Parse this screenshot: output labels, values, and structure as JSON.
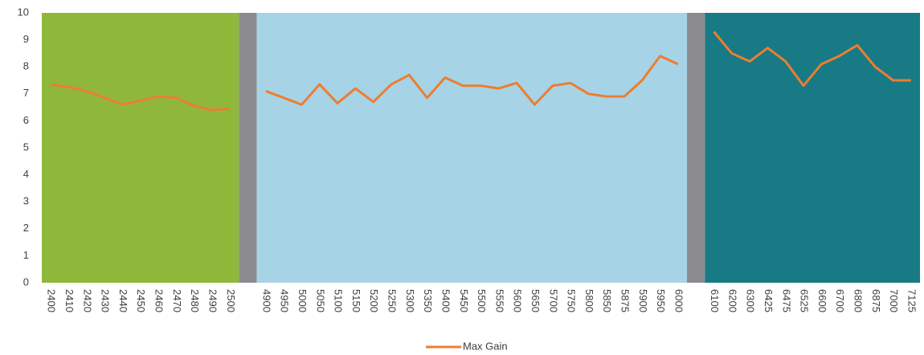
{
  "chart_data": {
    "type": "line",
    "categories": [
      "2400",
      "2410",
      "2420",
      "2430",
      "2440",
      "2450",
      "2460",
      "2470",
      "2480",
      "2490",
      "2500",
      null,
      "4900",
      "4950",
      "5000",
      "5050",
      "5100",
      "5150",
      "5200",
      "5250",
      "5300",
      "5350",
      "5400",
      "5450",
      "5500",
      "5550",
      "5600",
      "5650",
      "5700",
      "5750",
      "5800",
      "5850",
      "5875",
      "5900",
      "5950",
      "6000",
      null,
      "6100",
      "6200",
      "6300",
      "6425",
      "6475",
      "6525",
      "6600",
      "6700",
      "6800",
      "6875",
      "7000",
      "7125"
    ],
    "series": [
      {
        "name": "Max Gain",
        "color": "#ed7d31",
        "values": [
          7.35,
          7.25,
          7.1,
          6.85,
          6.6,
          6.75,
          6.9,
          6.85,
          6.55,
          6.4,
          6.45,
          null,
          7.1,
          6.85,
          6.6,
          7.35,
          6.65,
          7.2,
          6.7,
          7.35,
          7.7,
          6.85,
          7.6,
          7.3,
          7.3,
          7.2,
          7.4,
          6.6,
          7.3,
          7.4,
          7.0,
          6.9,
          6.9,
          7.5,
          8.4,
          8.1,
          null,
          9.3,
          8.5,
          8.2,
          8.7,
          8.2,
          7.3,
          8.1,
          8.4,
          8.8,
          8.0,
          7.5,
          7.5
        ]
      }
    ],
    "ylim": [
      0,
      10
    ],
    "yticks": [
      0,
      1,
      2,
      3,
      4,
      5,
      6,
      7,
      8,
      9,
      10
    ],
    "legend": "bottom"
  }
}
